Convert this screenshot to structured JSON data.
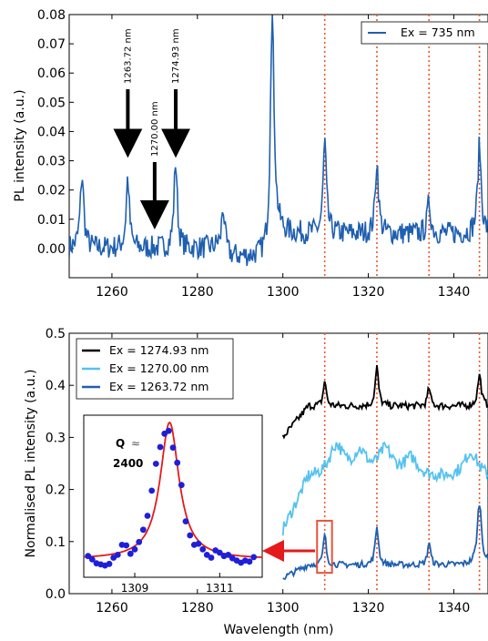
{
  "chart_data": [
    {
      "type": "line",
      "ylabel": "PL intensity (a.u.)",
      "xlabel": "",
      "xlim": [
        1250,
        1348
      ],
      "ylim": [
        -0.01,
        0.08
      ],
      "xticks": [
        "1260",
        "1280",
        "1300",
        "1320",
        "1340"
      ],
      "yticks": [
        "0.00",
        "0.01",
        "0.02",
        "0.03",
        "0.04",
        "0.05",
        "0.06",
        "0.07",
        "0.08"
      ],
      "legend": {
        "position": "top-right",
        "entries": [
          {
            "label": "Ex = 735 nm",
            "color": "#1f5fb0"
          }
        ]
      },
      "series": [
        {
          "name": "Ex = 735 nm",
          "color": "#1f5fb0",
          "baseline": 0.0,
          "noise": 0.004,
          "peaks": [
            {
              "x": 1253.0,
              "h": 0.025,
              "w": 0.5
            },
            {
              "x": 1263.7,
              "h": 0.024,
              "w": 0.45
            },
            {
              "x": 1274.9,
              "h": 0.03,
              "w": 0.45
            },
            {
              "x": 1286.0,
              "h": 0.017,
              "w": 0.5
            },
            {
              "x": 1297.5,
              "h": 0.074,
              "w": 0.55
            },
            {
              "x": 1309.8,
              "h": 0.031,
              "w": 0.45
            },
            {
              "x": 1322.0,
              "h": 0.025,
              "w": 0.45
            },
            {
              "x": 1334.2,
              "h": 0.011,
              "w": 0.45
            },
            {
              "x": 1346.0,
              "h": 0.03,
              "w": 0.5
            }
          ],
          "baseline_segments": [
            {
              "x0": 1250,
              "x1": 1285,
              "level": 0.0
            },
            {
              "x0": 1285,
              "x1": 1297,
              "level": -0.003
            },
            {
              "x0": 1297,
              "x1": 1348,
              "level": 0.005
            }
          ]
        }
      ],
      "annotations": [
        {
          "text": "1263.72 nm",
          "x": 1263.72,
          "arrow_tip_y": 0.0335
        },
        {
          "text": "1270.00 nm",
          "x": 1270.0,
          "arrow_tip_y": 0.009
        },
        {
          "text": "1274.93 nm",
          "x": 1274.93,
          "arrow_tip_y": 0.0335
        }
      ],
      "vlines": [
        1309.8,
        1322.0,
        1334.2,
        1346.0
      ]
    },
    {
      "type": "line",
      "ylabel": "Normalised PL intensity (a.u.)",
      "xlabel": "Wavelength (nm)",
      "xlim": [
        1250,
        1348
      ],
      "ylim": [
        0.0,
        0.5
      ],
      "xticks": [
        "1260",
        "1280",
        "1300",
        "1320",
        "1340"
      ],
      "yticks": [
        "0.0",
        "0.1",
        "0.2",
        "0.3",
        "0.4",
        "0.5"
      ],
      "legend": {
        "position": "top-left",
        "entries": [
          {
            "label": "Ex = 1274.93 nm",
            "color": "#000000"
          },
          {
            "label": "Ex = 1270.00 nm",
            "color": "#55c2f0"
          },
          {
            "label": "Ex = 1263.72 nm",
            "color": "#1f5fb0"
          }
        ]
      },
      "series": [
        {
          "name": "Ex = 1274.93 nm",
          "color": "#000000",
          "x_start": 1300,
          "start_level": 0.3,
          "level": 0.36,
          "noise": 0.007,
          "peaks": [
            {
              "x": 1309.8,
              "h": 0.05,
              "w": 0.4
            },
            {
              "x": 1322.0,
              "h": 0.075,
              "w": 0.45
            },
            {
              "x": 1334.2,
              "h": 0.035,
              "w": 0.4
            },
            {
              "x": 1346.0,
              "h": 0.06,
              "w": 0.5
            }
          ]
        },
        {
          "name": "Ex = 1270.00 nm",
          "color": "#55c2f0",
          "x_start": 1300,
          "start_level": 0.12,
          "level": 0.22,
          "noise": 0.012,
          "peaks": [
            {
              "x": 1312.5,
              "h": 0.06,
              "w": 2.0
            },
            {
              "x": 1318.0,
              "h": 0.045,
              "w": 2.0
            },
            {
              "x": 1324.0,
              "h": 0.05,
              "w": 2.0
            },
            {
              "x": 1330.0,
              "h": 0.035,
              "w": 2.0
            },
            {
              "x": 1344.0,
              "h": 0.05,
              "w": 2.0
            }
          ]
        },
        {
          "name": "Ex = 1263.72 nm",
          "color": "#1f5fb0",
          "x_start": 1300,
          "start_level": 0.03,
          "level": 0.055,
          "noise": 0.006,
          "peaks": [
            {
              "x": 1309.8,
              "h": 0.06,
              "w": 0.4
            },
            {
              "x": 1322.0,
              "h": 0.075,
              "w": 0.45
            },
            {
              "x": 1334.2,
              "h": 0.045,
              "w": 0.4
            },
            {
              "x": 1346.0,
              "h": 0.12,
              "w": 0.6
            }
          ]
        }
      ],
      "vlines": [
        1309.8,
        1322.0,
        1334.2,
        1346.0
      ],
      "highlight_box": {
        "x0": 1308.0,
        "x1": 1311.5,
        "y0": 0.04,
        "y1": 0.14,
        "color": "#e5553a"
      }
    },
    {
      "type": "scatter",
      "title": "",
      "annotation_symbol": "Q",
      "annotation_approx": "≈",
      "annotation_value": "2400",
      "xlim": [
        1307.8,
        1312.0
      ],
      "ylim": [
        0.05,
        0.34
      ],
      "xticks": [
        "1309",
        "1311"
      ],
      "points_x": [
        1307.9,
        1308.0,
        1308.1,
        1308.2,
        1308.3,
        1308.4,
        1308.5,
        1308.6,
        1308.7,
        1308.8,
        1308.9,
        1309.0,
        1309.1,
        1309.2,
        1309.3,
        1309.4,
        1309.5,
        1309.6,
        1309.7,
        1309.8,
        1309.9,
        1310.0,
        1310.1,
        1310.2,
        1310.3,
        1310.4,
        1310.5,
        1310.6,
        1310.7,
        1310.8,
        1310.9,
        1311.0,
        1311.1,
        1311.2,
        1311.3,
        1311.4,
        1311.5,
        1311.6,
        1311.7,
        1311.8
      ],
      "points_y": [
        0.088,
        0.082,
        0.075,
        0.073,
        0.071,
        0.074,
        0.085,
        0.09,
        0.108,
        0.107,
        0.092,
        0.1,
        0.113,
        0.135,
        0.16,
        0.205,
        0.253,
        0.283,
        0.307,
        0.312,
        0.282,
        0.255,
        0.215,
        0.15,
        0.125,
        0.108,
        0.11,
        0.1,
        0.09,
        0.085,
        0.098,
        0.094,
        0.088,
        0.09,
        0.084,
        0.08,
        0.076,
        0.08,
        0.078,
        0.086
      ],
      "fit": {
        "type": "lorentzian",
        "center": 1309.82,
        "amplitude": 0.245,
        "hwhm": 0.27,
        "offset": 0.082,
        "color": "#e41a1c"
      },
      "points_color": "#1f1fd8"
    }
  ]
}
